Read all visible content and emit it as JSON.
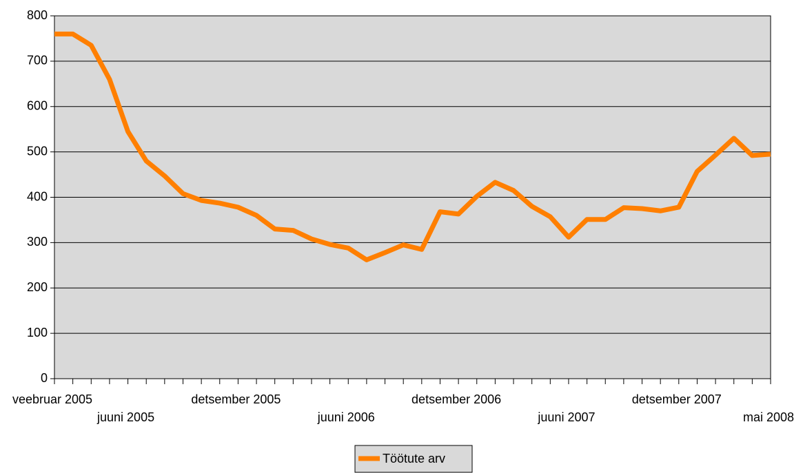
{
  "chart_data": {
    "type": "line",
    "categories": [
      "veebruar 2005",
      null,
      null,
      null,
      "juuni 2005",
      null,
      null,
      null,
      null,
      null,
      "detsember 2005",
      null,
      null,
      null,
      null,
      null,
      "juuni 2006",
      null,
      null,
      null,
      null,
      null,
      "detsember 2006",
      null,
      null,
      null,
      null,
      null,
      "juuni 2007",
      null,
      null,
      null,
      null,
      null,
      "detsember 2007",
      null,
      null,
      null,
      null,
      "mai 2008"
    ],
    "series": [
      {
        "name": "Töötute arv",
        "color": "#ff7f00",
        "values": [
          760,
          760,
          735,
          660,
          545,
          480,
          447,
          408,
          393,
          387,
          378,
          360,
          330,
          327,
          308,
          296,
          288,
          262,
          278,
          295,
          285,
          368,
          363,
          402,
          433,
          415,
          380,
          357,
          312,
          351,
          351,
          377,
          375,
          370,
          378,
          457,
          493,
          530,
          492,
          495
        ]
      }
    ],
    "ylim": [
      0,
      800
    ],
    "yticks": [
      0,
      100,
      200,
      300,
      400,
      500,
      600,
      700,
      800
    ],
    "grid": true,
    "legend": "bottom"
  }
}
